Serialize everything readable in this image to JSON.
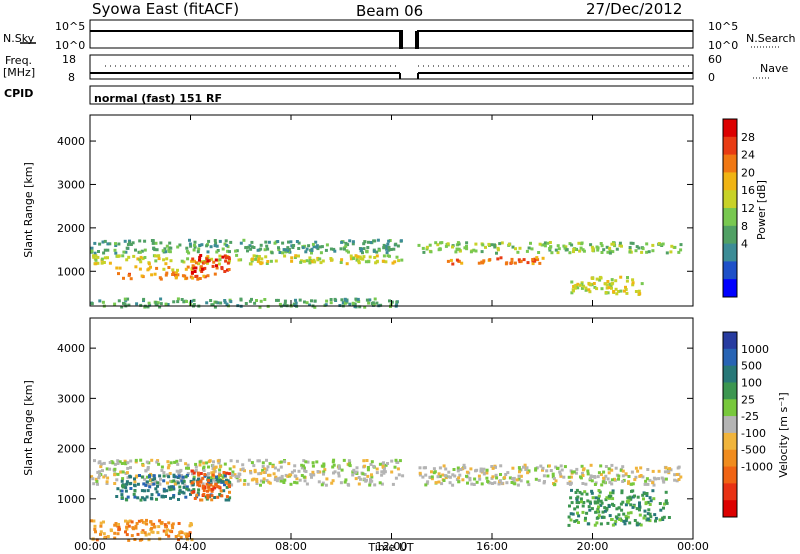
{
  "header": {
    "title": "Syowa East (fitACF)",
    "beam": "Beam 06",
    "date": "27/Dec/2012"
  },
  "top_panels": {
    "nsky_label": "N.Sky",
    "nsky_tick_top": "10^5",
    "nsky_tick_bottom": "10^0",
    "nsearch_tick_top": "10^5",
    "nsearch_tick_bottom": "10^0",
    "nsearch_label": "N.Search",
    "freq_label_line1": "Freq.",
    "freq_label_line2": "[MHz]",
    "freq_tick_top": "18",
    "freq_tick_bottom": "8",
    "nave_tick_top": "60",
    "nave_tick_bottom": "0",
    "nave_label": "Nave",
    "cpid_label": "CPID",
    "cpid_value": "normal (fast) 151 RF"
  },
  "colors": {
    "power": [
      "#0000ff",
      "#1e50c8",
      "#3c8c96",
      "#50a064",
      "#78c850",
      "#c8d228",
      "#f0b414",
      "#f07814",
      "#e83c14",
      "#dc0000"
    ],
    "velocity_pos": [
      "#283ca0",
      "#2864b4",
      "#287878",
      "#3c9650",
      "#78c83c"
    ],
    "velocity_neutral": "#b4b4b4",
    "velocity_neg": [
      "#f0b43c",
      "#f08c1e",
      "#f06414",
      "#e83214",
      "#dc0000"
    ]
  },
  "chart_data": [
    {
      "type": "heatmap",
      "name": "power",
      "ylabel": "Slant Range [km]",
      "xlabel": "",
      "xlim": [
        0,
        24
      ],
      "ylim": [
        200,
        4600
      ],
      "xticks": [
        "00:00",
        "04:00",
        "08:00",
        "12:00",
        "16:00",
        "20:00",
        "00:00"
      ],
      "yticks": [
        1000,
        2000,
        3000,
        4000
      ],
      "colorbar": {
        "label": "Power [dB]",
        "ticks": [
          "4",
          "8",
          "12",
          "16",
          "20",
          "24",
          "28"
        ]
      },
      "data_gap_hours": [
        12.4,
        13.0
      ],
      "bands": [
        {
          "x": [
            0,
            12.4
          ],
          "y": [
            1450,
            1750
          ],
          "level": 3
        },
        {
          "x": [
            0,
            12.4
          ],
          "y": [
            1200,
            1400
          ],
          "level": 5
        },
        {
          "x": [
            1,
            5
          ],
          "y": [
            850,
            1000
          ],
          "level": 7
        },
        {
          "x": [
            1,
            4.5
          ],
          "y": [
            1050,
            1150
          ],
          "level": 6
        },
        {
          "x": [
            4,
            5.5
          ],
          "y": [
            1000,
            1400
          ],
          "level": 8
        },
        {
          "x": [
            0,
            12.4
          ],
          "y": [
            200,
            400
          ],
          "level": 3
        },
        {
          "x": [
            13,
            23.5
          ],
          "y": [
            1450,
            1700
          ],
          "level": 4
        },
        {
          "x": [
            14,
            18
          ],
          "y": [
            1200,
            1350
          ],
          "level": 7
        },
        {
          "x": [
            19,
            22
          ],
          "y": [
            500,
            900
          ],
          "level": 5
        }
      ]
    },
    {
      "type": "heatmap",
      "name": "velocity",
      "ylabel": "Slant Range [km]",
      "xlabel": "Time UT",
      "xlim": [
        0,
        24
      ],
      "ylim": [
        200,
        4600
      ],
      "xticks": [
        "00:00",
        "04:00",
        "08:00",
        "12:00",
        "16:00",
        "20:00",
        "00:00"
      ],
      "yticks": [
        1000,
        2000,
        3000,
        4000
      ],
      "colorbar": {
        "label": "Velocity [m s⁻¹]",
        "ticks": [
          "1000",
          "500",
          "100",
          "25",
          "-25",
          "-100",
          "-500",
          "-1000"
        ]
      },
      "data_gap_hours": [
        12.4,
        13.0
      ],
      "bands": [
        {
          "x": [
            0,
            12.4
          ],
          "y": [
            1300,
            1800
          ],
          "level": 0
        },
        {
          "x": [
            1,
            5.5
          ],
          "y": [
            1000,
            1500
          ],
          "level": 3
        },
        {
          "x": [
            0,
            4
          ],
          "y": [
            200,
            600
          ],
          "level": -2
        },
        {
          "x": [
            4,
            5.5
          ],
          "y": [
            1000,
            1600
          ],
          "level": -3
        },
        {
          "x": [
            13,
            23.5
          ],
          "y": [
            1300,
            1700
          ],
          "level": 0
        },
        {
          "x": [
            19,
            23
          ],
          "y": [
            500,
            1200
          ],
          "level": 2
        }
      ]
    }
  ]
}
